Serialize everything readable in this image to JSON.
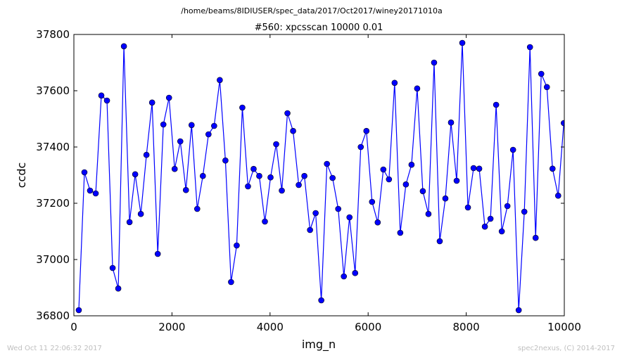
{
  "figure": {
    "suptitle": "/home/beams/8IDIUSER/spec_data/2017/Oct2017/winey20171010a",
    "footer_left": "Wed Oct 11 22:06:32 2017",
    "footer_right": "spec2nexus, (C) 2014-2017"
  },
  "chart_data": {
    "type": "line",
    "title": "#560: xpcsscan 10000 0.01",
    "xlabel": "img_n",
    "ylabel": "ccdc",
    "xlim": [
      0,
      10000
    ],
    "ylim": [
      36800,
      37800
    ],
    "xticks": [
      0,
      2000,
      4000,
      6000,
      8000,
      10000
    ],
    "xtick_labels": [
      "0",
      "2000",
      "4000",
      "6000",
      "8000",
      "10000"
    ],
    "yticks": [
      36800,
      37000,
      37200,
      37400,
      37600,
      37800
    ],
    "ytick_labels": [
      "36800",
      "37000",
      "37200",
      "37400",
      "37600",
      "37800"
    ],
    "grid": false,
    "line_color": "#0000ff",
    "marker": "circle",
    "series": [
      {
        "x": [
          100,
          215,
          330,
          445,
          560,
          675,
          790,
          905,
          1020,
          1135,
          1250,
          1365,
          1480,
          1595,
          1710,
          1825,
          1940,
          2055,
          2170,
          2285,
          2400,
          2515,
          2630,
          2745,
          2860,
          2975,
          3090,
          3205,
          3320,
          3435,
          3550,
          3665,
          3780,
          3895,
          4010,
          4125,
          4240,
          4355,
          4470,
          4585,
          4700,
          4815,
          4930,
          5045,
          5160,
          5275,
          5390,
          5505,
          5620,
          5735,
          5850,
          5965,
          6080,
          6195,
          6310,
          6425,
          6540,
          6655,
          6770,
          6885,
          7000,
          7115,
          7230,
          7345,
          7460,
          7575,
          7690,
          7805,
          7920,
          8035,
          8150,
          8265,
          8380,
          8495,
          8610,
          8725,
          8840,
          8955,
          9070,
          9185,
          9300,
          9415,
          9530,
          9645,
          9760,
          9875,
          9990
        ],
        "y": [
          36820,
          37310,
          37245,
          37235,
          37583,
          37565,
          36970,
          36897,
          37758,
          37133,
          37303,
          37162,
          37372,
          37558,
          37020,
          37480,
          37575,
          37322,
          37420,
          37247,
          37478,
          37180,
          37297,
          37445,
          37475,
          37638,
          37352,
          36920,
          37050,
          37540,
          37260,
          37322,
          37297,
          37135,
          37292,
          37410,
          37245,
          37520,
          37457,
          37265,
          37297,
          37105,
          37165,
          36855,
          37340,
          37290,
          37180,
          36940,
          37150,
          36952,
          37400,
          37457,
          37205,
          37132,
          37320,
          37285,
          37628,
          37095,
          37267,
          37337,
          37608,
          37243,
          37162,
          37700,
          37065,
          37217,
          37487,
          37280,
          37770,
          37185,
          37325,
          37323,
          37117,
          37145,
          37550,
          37100,
          37190,
          37390,
          36820,
          37170,
          37755,
          37077,
          37660,
          37613,
          37323,
          37227,
          37485
        ]
      }
    ]
  }
}
